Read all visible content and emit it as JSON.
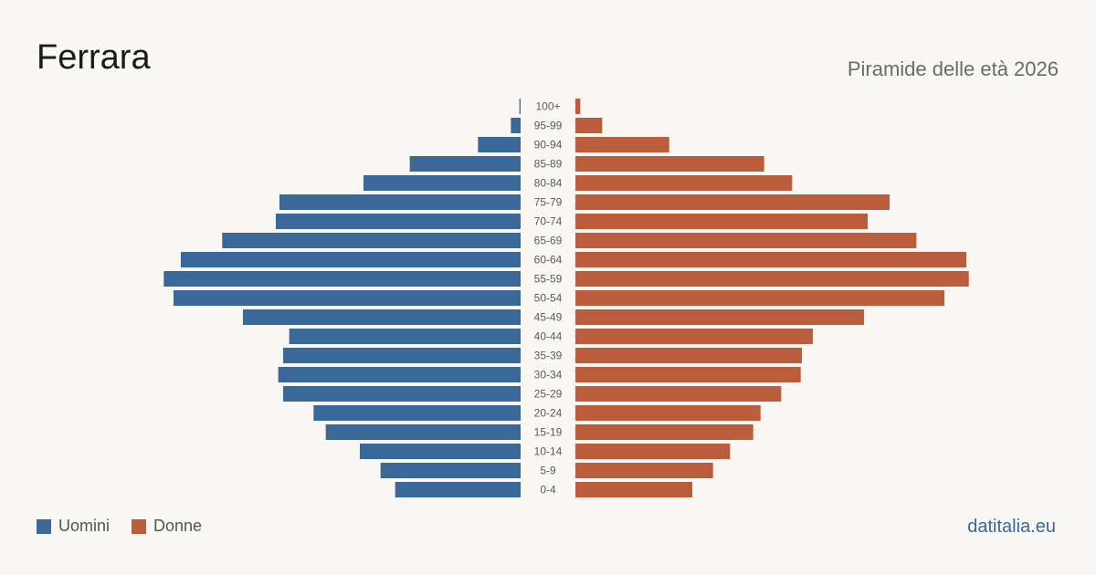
{
  "title": "Ferrara",
  "subtitle": "Piramide delle età 2026",
  "source": "datitalia.eu",
  "colors": {
    "men": "#3a6898",
    "women": "#b95d3c",
    "age_label": "#5a5a5a"
  },
  "legend": [
    {
      "label": "Uomini",
      "color": "#3a6898"
    },
    {
      "label": "Donne",
      "color": "#b95d3c"
    }
  ],
  "chart_data": {
    "type": "bar",
    "orientation": "horizontal-diverging",
    "categories": [
      "100+",
      "95-99",
      "90-94",
      "85-89",
      "80-84",
      "75-79",
      "70-74",
      "65-69",
      "60-64",
      "55-59",
      "50-54",
      "45-49",
      "40-44",
      "35-39",
      "30-34",
      "25-29",
      "20-24",
      "15-19",
      "10-14",
      "5-9",
      "0-4"
    ],
    "series": [
      {
        "name": "Uomini",
        "values": [
          5,
          40,
          175,
          455,
          645,
          990,
          1005,
          1225,
          1395,
          1465,
          1425,
          1140,
          950,
          975,
          995,
          975,
          850,
          800,
          660,
          575,
          515
        ]
      },
      {
        "name": "Donne",
        "values": [
          20,
          110,
          385,
          775,
          890,
          1290,
          1200,
          1400,
          1605,
          1615,
          1515,
          1185,
          975,
          930,
          925,
          845,
          760,
          730,
          635,
          565,
          480
        ]
      }
    ],
    "legend_position": "bottom-left",
    "grid": false
  }
}
